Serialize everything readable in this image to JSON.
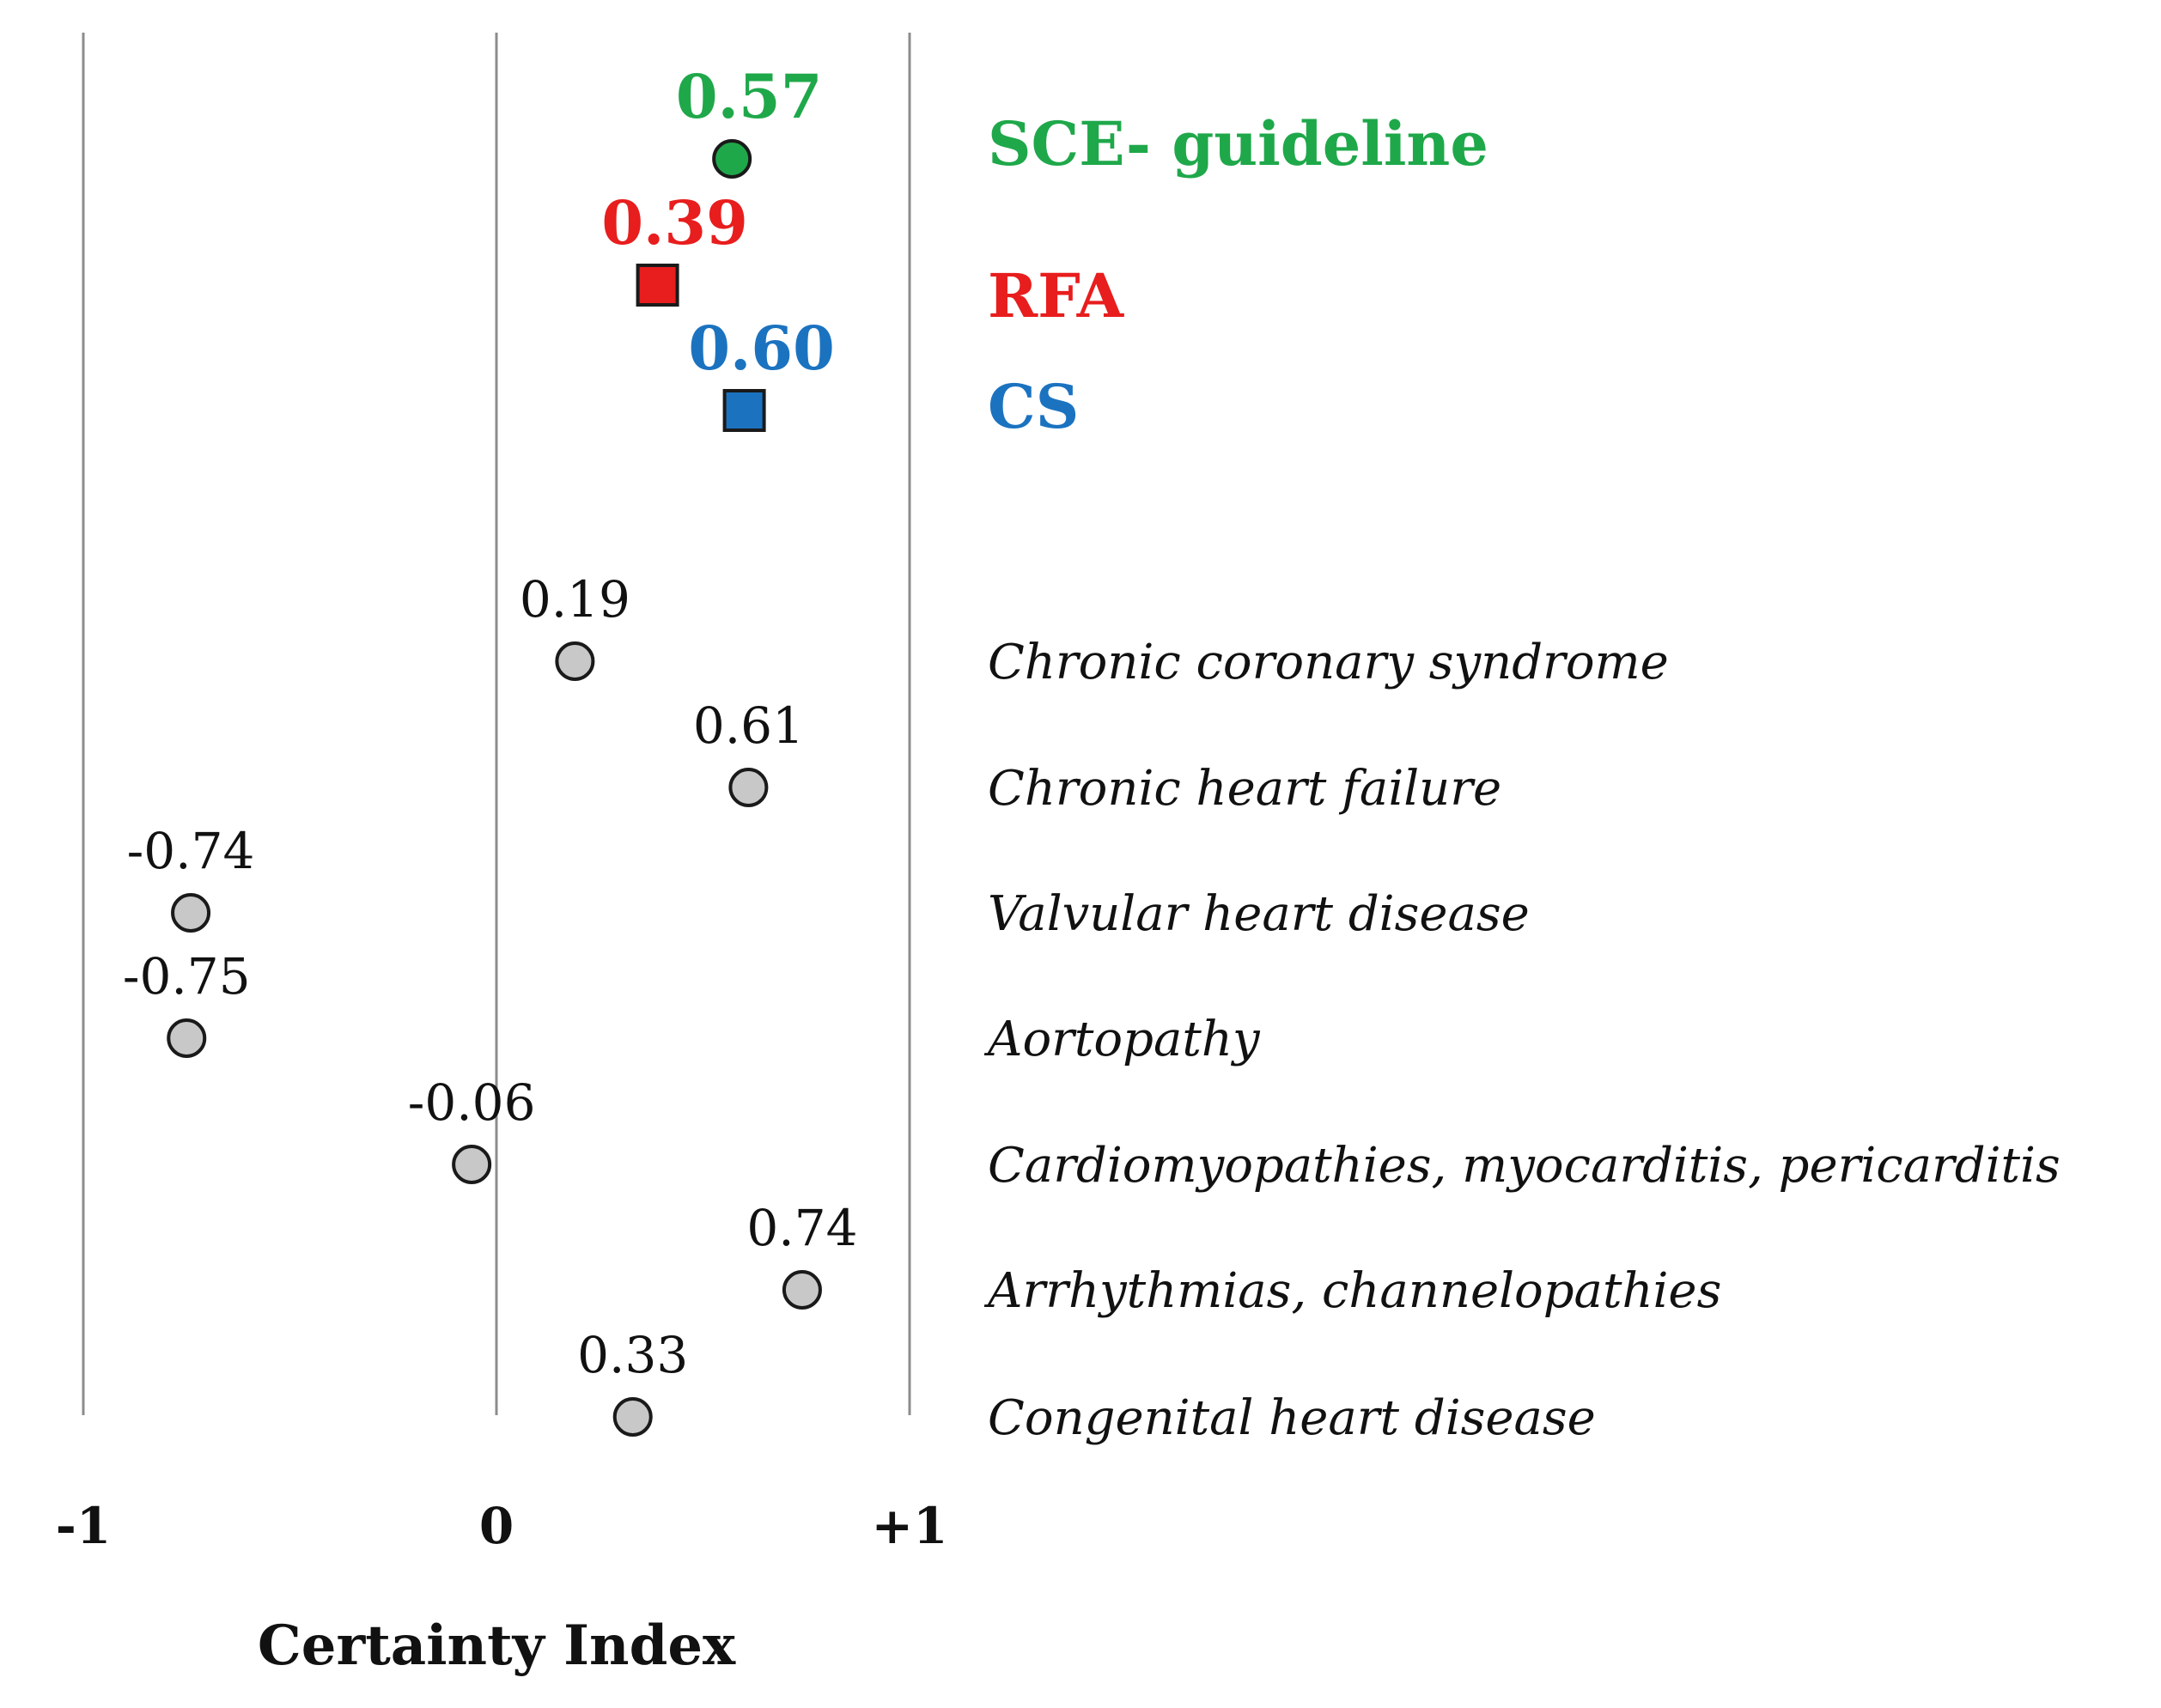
{
  "chart_data": {
    "type": "scatter",
    "title": "",
    "xlabel": "Certainty Index",
    "ylabel": "",
    "xlim": [
      -1,
      1
    ],
    "x_ticks": [
      {
        "value": -1,
        "label": "-1"
      },
      {
        "value": 0,
        "label": "0"
      },
      {
        "value": 1,
        "label": "+1"
      }
    ],
    "grid": "vertical lines at -1, 0, +1",
    "highlighted": [
      {
        "name": "SCE- guideline",
        "value": 0.57,
        "label": "0.57",
        "marker": "circle",
        "color": "#1fa84a"
      },
      {
        "name": "RFA",
        "value": 0.39,
        "label": "0.39",
        "marker": "square",
        "color": "#e81d1d"
      },
      {
        "name": "CS",
        "value": 0.6,
        "label": "0.60",
        "marker": "square",
        "color": "#1b73c0"
      }
    ],
    "categories": [
      {
        "name": "Chronic coronary syndrome",
        "value": 0.19,
        "label": "0.19"
      },
      {
        "name": "Chronic heart failure",
        "value": 0.61,
        "label": "0.61"
      },
      {
        "name": "Valvular heart disease",
        "value": -0.74,
        "label": "-0.74"
      },
      {
        "name": "Aortopathy",
        "value": -0.75,
        "label": "-0.75"
      },
      {
        "name": "Cardiomyopathies, myocarditis, pericarditis",
        "value": -0.06,
        "label": "-0.06"
      },
      {
        "name": "Arrhythmias, channelopathies",
        "value": 0.74,
        "label": "0.74"
      },
      {
        "name": "Congenital heart disease",
        "value": 0.33,
        "label": "0.33"
      }
    ],
    "colors": {
      "gridline": "#8c8c8c",
      "category_marker": "#c8c8c8",
      "marker_stroke": "#1a1a1a",
      "text": "#111111"
    }
  }
}
